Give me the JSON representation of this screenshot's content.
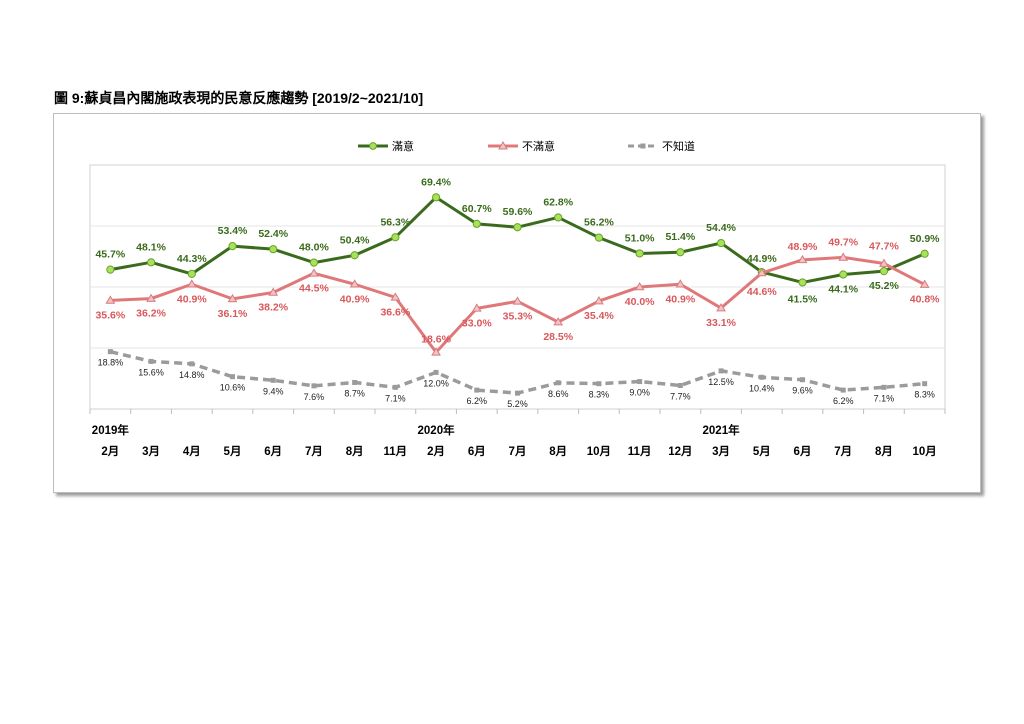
{
  "figure_title": "圖 9:蘇貞昌內閣施政表現的民意反應趨勢  [2019/2~2021/10]",
  "chart_data": {
    "type": "line",
    "title": "圖 9:蘇貞昌內閣施政表現的民意反應趨勢  [2019/2~2021/10]",
    "categories": [
      "2月",
      "3月",
      "4月",
      "5月",
      "6月",
      "7月",
      "8月",
      "11月",
      "2月",
      "6月",
      "7月",
      "8月",
      "10月",
      "11月",
      "12月",
      "3月",
      "5月",
      "6月",
      "7月",
      "8月",
      "10月"
    ],
    "year_labels": [
      {
        "label": "2019年",
        "index": 0
      },
      {
        "label": "2020年",
        "index": 8
      },
      {
        "label": "2021年",
        "index": 15
      }
    ],
    "series": [
      {
        "name": "滿意",
        "color": "#3a6b1c",
        "marker_fill": "#a6e25a",
        "values": [
          45.7,
          48.1,
          44.3,
          53.4,
          52.4,
          48.0,
          50.4,
          56.3,
          69.4,
          60.7,
          59.6,
          62.8,
          56.2,
          51.0,
          51.4,
          54.4,
          44.9,
          41.5,
          44.1,
          45.2,
          50.9
        ]
      },
      {
        "name": "不滿意",
        "color": "#e0787a",
        "marker_fill": "#f2c2c4",
        "values": [
          35.6,
          36.2,
          40.9,
          36.1,
          38.2,
          44.5,
          40.9,
          36.6,
          18.6,
          33.0,
          35.3,
          28.5,
          35.4,
          40.0,
          40.9,
          33.1,
          44.6,
          48.9,
          49.7,
          47.7,
          40.8
        ]
      },
      {
        "name": "不知道",
        "color": "#9b9b9b",
        "marker_fill": "#9b9b9b",
        "values": [
          18.8,
          15.6,
          14.8,
          10.6,
          9.4,
          7.6,
          8.7,
          7.1,
          12.0,
          6.2,
          5.2,
          8.6,
          8.3,
          9.0,
          7.7,
          12.5,
          10.4,
          9.6,
          6.2,
          7.1,
          8.3
        ]
      }
    ],
    "value_labels": [
      [
        "45.7%",
        "48.1%",
        "44.3%",
        "53.4%",
        "52.4%",
        "48.0%",
        "50.4%",
        "56.3%",
        "69.4%",
        "60.7%",
        "59.6%",
        "62.8%",
        "56.2%",
        "51.0%",
        "51.4%",
        "54.4%",
        "44.9%",
        "41.5%",
        "44.1%",
        "45.2%",
        "50.9%"
      ],
      [
        "35.6%",
        "36.2%",
        "40.9%",
        "36.1%",
        "38.2%",
        "44.5%",
        "40.9%",
        "36.6%",
        "18.6%",
        "33.0%",
        "35.3%",
        "28.5%",
        "35.4%",
        "40.0%",
        "40.9%",
        "33.1%",
        "44.6%",
        "48.9%",
        "49.7%",
        "47.7%",
        "40.8%"
      ],
      [
        "18.8%",
        "15.6%",
        "14.8%",
        "10.6%",
        "9.4%",
        "7.6%",
        "8.7%",
        "7.1%",
        "12.0%",
        "6.2%",
        "5.2%",
        "8.6%",
        "8.3%",
        "9.0%",
        "7.7%",
        "12.5%",
        "10.4%",
        "9.6%",
        "6.2%",
        "7.1%",
        "8.3%"
      ]
    ],
    "ylim": [
      0,
      80
    ],
    "grid": true,
    "legend_position": "top"
  }
}
